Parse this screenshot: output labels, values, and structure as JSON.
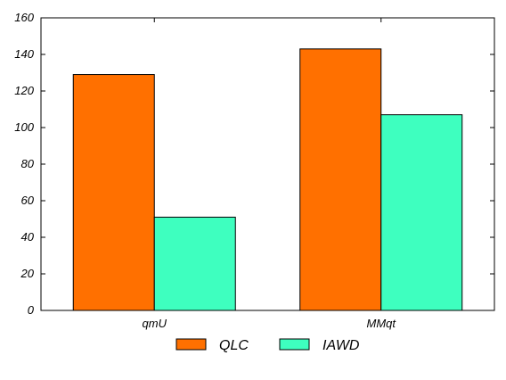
{
  "chart_data": {
    "type": "bar",
    "title": "",
    "xlabel": "",
    "ylabel": "",
    "categories": [
      "qmU",
      "MMqt"
    ],
    "series": [
      {
        "name": "QLC",
        "values": [
          129,
          143
        ],
        "color": "#ff7000"
      },
      {
        "name": "IAWD",
        "values": [
          51,
          107
        ],
        "color": "#3effbf"
      }
    ],
    "ylim": [
      0,
      160
    ],
    "yticks": [
      0,
      20,
      40,
      60,
      80,
      100,
      120,
      140,
      160
    ],
    "grid": false,
    "legend": "bottom-center"
  }
}
